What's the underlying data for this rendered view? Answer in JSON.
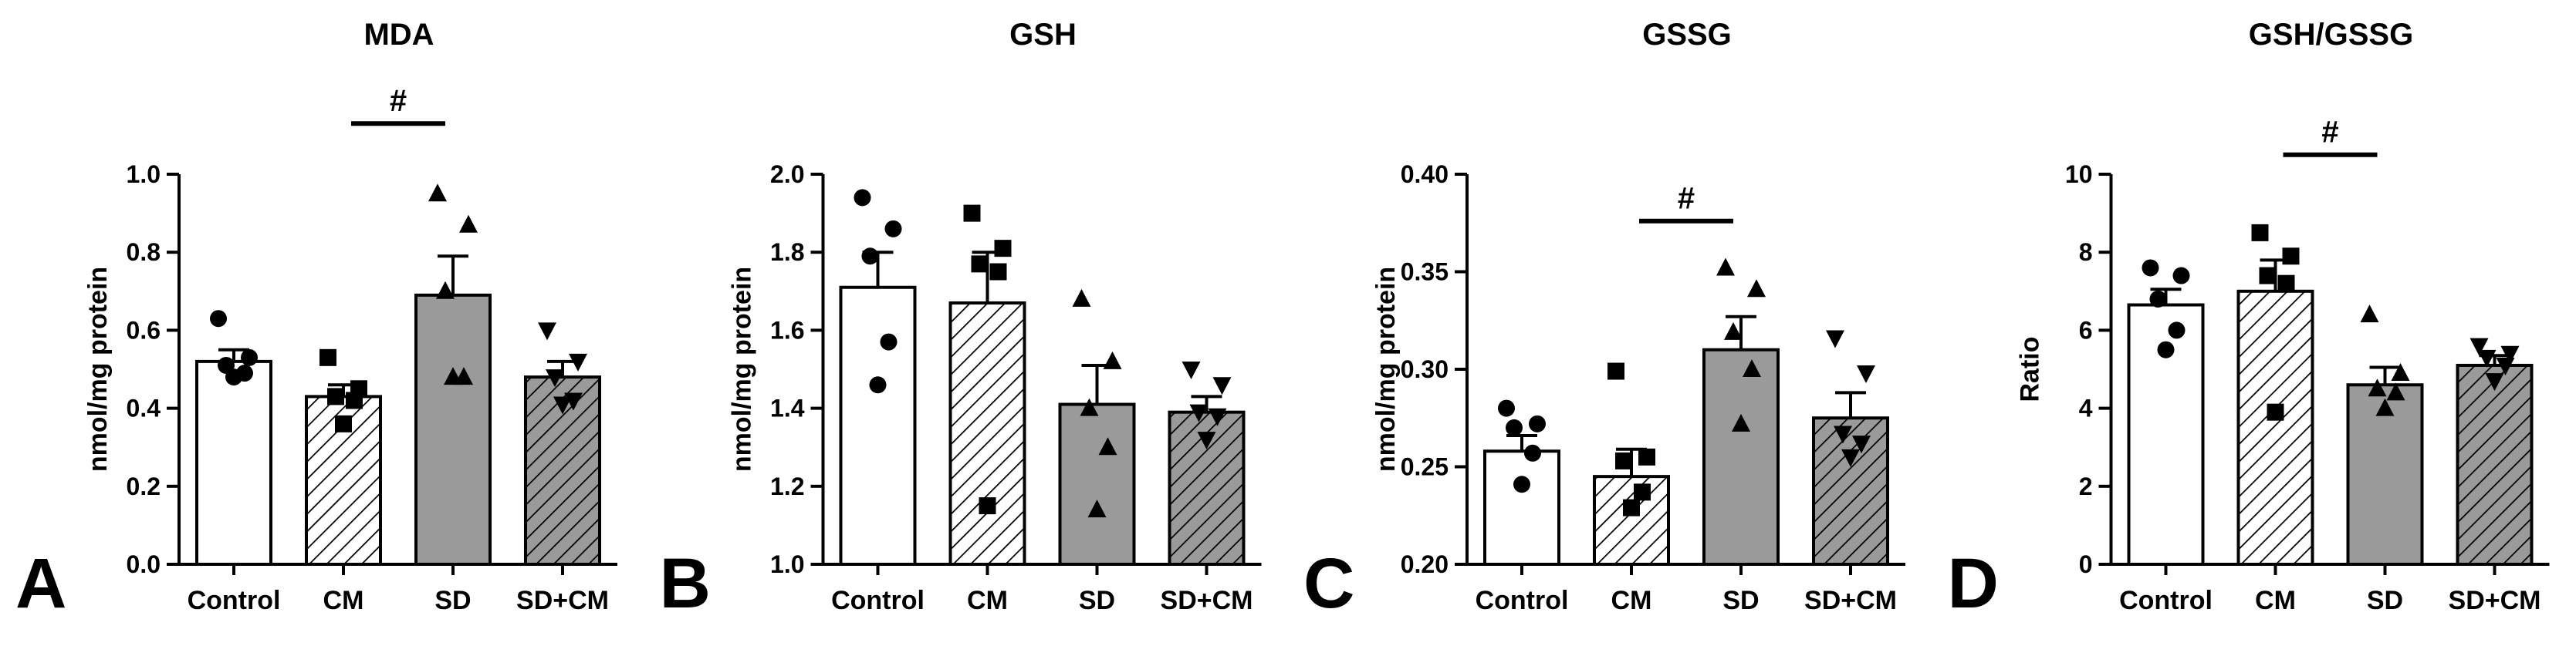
{
  "chart_data": [
    {
      "type": "bar",
      "panel_letter": "A",
      "title": "MDA",
      "ylabel": "nmol/mg protein",
      "categories": [
        "Control",
        "CM",
        "SD",
        "SD+CM"
      ],
      "ylim": [
        0.0,
        1.0
      ],
      "yticks": [
        0.0,
        0.2,
        0.4,
        0.6,
        0.8,
        1.0
      ],
      "ytick_labels": [
        "0.0",
        "0.2",
        "0.4",
        "0.6",
        "0.8",
        "1.0"
      ],
      "values": [
        0.52,
        0.43,
        0.69,
        0.48
      ],
      "errors": [
        0.03,
        0.03,
        0.1,
        0.04
      ],
      "points": [
        [
          0.63,
          0.53,
          0.51,
          0.49,
          0.48
        ],
        [
          0.53,
          0.45,
          0.43,
          0.42,
          0.36
        ],
        [
          0.95,
          0.87,
          0.7,
          0.48,
          0.48
        ],
        [
          0.6,
          0.52,
          0.48,
          0.42,
          0.41
        ]
      ],
      "annotation": {
        "text": "#",
        "from": 1,
        "to": 2,
        "y": 1.13
      }
    },
    {
      "type": "bar",
      "panel_letter": "B",
      "title": "GSH",
      "ylabel": "nmol/mg protein",
      "categories": [
        "Control",
        "CM",
        "SD",
        "SD+CM"
      ],
      "ylim": [
        1.0,
        2.0
      ],
      "yticks": [
        1.0,
        1.2,
        1.4,
        1.6,
        1.8,
        2.0
      ],
      "ytick_labels": [
        "1.0",
        "1.2",
        "1.4",
        "1.6",
        "1.8",
        "2.0"
      ],
      "values": [
        1.71,
        1.67,
        1.41,
        1.39
      ],
      "errors": [
        0.09,
        0.13,
        0.1,
        0.04
      ],
      "points": [
        [
          1.94,
          1.86,
          1.79,
          1.57,
          1.46
        ],
        [
          1.9,
          1.81,
          1.77,
          1.75,
          1.15
        ],
        [
          1.68,
          1.52,
          1.4,
          1.3,
          1.14
        ],
        [
          1.5,
          1.46,
          1.39,
          1.38,
          1.32
        ]
      ]
    },
    {
      "type": "bar",
      "panel_letter": "C",
      "title": "GSSG",
      "ylabel": "nmol/mg protein",
      "categories": [
        "Control",
        "CM",
        "SD",
        "SD+CM"
      ],
      "ylim": [
        0.2,
        0.4
      ],
      "yticks": [
        0.2,
        0.25,
        0.3,
        0.35,
        0.4
      ],
      "ytick_labels": [
        "0.20",
        "0.25",
        "0.30",
        "0.35",
        "0.40"
      ],
      "values": [
        0.258,
        0.245,
        0.31,
        0.275
      ],
      "errors": [
        0.008,
        0.014,
        0.017,
        0.013
      ],
      "points": [
        [
          0.28,
          0.272,
          0.27,
          0.257,
          0.241
        ],
        [
          0.299,
          0.255,
          0.253,
          0.237,
          0.229
        ],
        [
          0.352,
          0.341,
          0.319,
          0.3,
          0.272
        ],
        [
          0.316,
          0.298,
          0.267,
          0.262,
          0.255
        ]
      ],
      "annotation": {
        "text": "#",
        "from": 1,
        "to": 2,
        "y": 0.376
      }
    },
    {
      "type": "bar",
      "panel_letter": "D",
      "title": "GSH/GSSG",
      "ylabel": "Ratio",
      "categories": [
        "Control",
        "CM",
        "SD",
        "SD+CM"
      ],
      "ylim": [
        0,
        10
      ],
      "yticks": [
        0,
        2,
        4,
        6,
        8,
        10
      ],
      "ytick_labels": [
        "0",
        "2",
        "4",
        "6",
        "8",
        "10"
      ],
      "values": [
        6.65,
        7.0,
        4.6,
        5.1
      ],
      "errors": [
        0.4,
        0.8,
        0.45,
        0.25
      ],
      "points": [
        [
          7.6,
          7.4,
          6.8,
          6.0,
          5.5
        ],
        [
          8.5,
          7.9,
          7.4,
          7.2,
          3.9
        ],
        [
          6.4,
          4.9,
          4.5,
          4.4,
          4.0
        ],
        [
          5.6,
          5.4,
          5.3,
          5.1,
          4.7
        ]
      ],
      "annotation": {
        "text": "#",
        "from": 1,
        "to": 2,
        "y": 10.5
      }
    }
  ]
}
